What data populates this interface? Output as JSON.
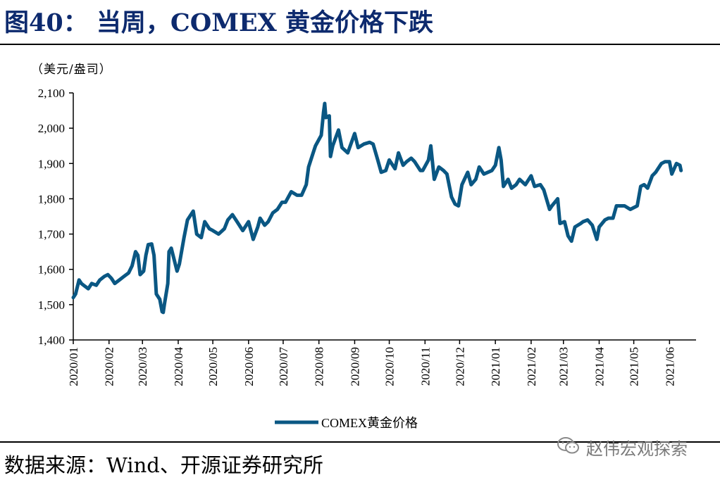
{
  "header": {
    "figure_title": "图40：  当周，COMEX 黄金价格下跌"
  },
  "footer": {
    "source": "数据来源：Wind、开源证券研究所",
    "watermark": "赵伟宏观探索"
  },
  "colors": {
    "title": "#0d2a6e",
    "series": "#0a5783",
    "axis": "#000000"
  },
  "chart_data": {
    "type": "line",
    "unit_label": "（美元/盎司）",
    "ylim": [
      1400,
      2100
    ],
    "y_ticks": [
      1400,
      1500,
      1600,
      1700,
      1800,
      1900,
      2000,
      2100
    ],
    "y_tick_labels": [
      "1,400",
      "1,500",
      "1,600",
      "1,700",
      "1,800",
      "1,900",
      "2,000",
      "2,100"
    ],
    "x_tick_labels": [
      "2020/01",
      "2020/02",
      "2020/03",
      "2020/04",
      "2020/05",
      "2020/06",
      "2020/07",
      "2020/08",
      "2020/09",
      "2020/10",
      "2020/11",
      "2020/12",
      "2021/01",
      "2021/02",
      "2021/03",
      "2021/04",
      "2021/05",
      "2021/06"
    ],
    "grid": false,
    "legend_position": "bottom-center",
    "series": [
      {
        "name": "COMEX黄金价格",
        "points": [
          [
            "2020-01-01",
            1520
          ],
          [
            "2020-01-03",
            1530
          ],
          [
            "2020-01-06",
            1570
          ],
          [
            "2020-01-08",
            1560
          ],
          [
            "2020-01-10",
            1555
          ],
          [
            "2020-01-14",
            1545
          ],
          [
            "2020-01-17",
            1560
          ],
          [
            "2020-01-21",
            1555
          ],
          [
            "2020-01-24",
            1570
          ],
          [
            "2020-01-28",
            1580
          ],
          [
            "2020-01-31",
            1585
          ],
          [
            "2020-02-03",
            1575
          ],
          [
            "2020-02-06",
            1560
          ],
          [
            "2020-02-10",
            1570
          ],
          [
            "2020-02-14",
            1580
          ],
          [
            "2020-02-18",
            1590
          ],
          [
            "2020-02-21",
            1610
          ],
          [
            "2020-02-24",
            1650
          ],
          [
            "2020-02-26",
            1640
          ],
          [
            "2020-02-28",
            1585
          ],
          [
            "2020-03-02",
            1595
          ],
          [
            "2020-03-04",
            1640
          ],
          [
            "2020-03-06",
            1670
          ],
          [
            "2020-03-09",
            1672
          ],
          [
            "2020-03-11",
            1640
          ],
          [
            "2020-03-13",
            1530
          ],
          [
            "2020-03-16",
            1515
          ],
          [
            "2020-03-18",
            1480
          ],
          [
            "2020-03-19",
            1478
          ],
          [
            "2020-03-20",
            1500
          ],
          [
            "2020-03-23",
            1560
          ],
          [
            "2020-03-24",
            1650
          ],
          [
            "2020-03-26",
            1660
          ],
          [
            "2020-03-31",
            1595
          ],
          [
            "2020-04-02",
            1615
          ],
          [
            "2020-04-06",
            1690
          ],
          [
            "2020-04-09",
            1740
          ],
          [
            "2020-04-14",
            1765
          ],
          [
            "2020-04-17",
            1700
          ],
          [
            "2020-04-21",
            1690
          ],
          [
            "2020-04-24",
            1735
          ],
          [
            "2020-04-28",
            1715
          ],
          [
            "2020-05-01",
            1710
          ],
          [
            "2020-05-06",
            1700
          ],
          [
            "2020-05-11",
            1715
          ],
          [
            "2020-05-14",
            1740
          ],
          [
            "2020-05-18",
            1755
          ],
          [
            "2020-05-20",
            1745
          ],
          [
            "2020-05-22",
            1735
          ],
          [
            "2020-05-27",
            1710
          ],
          [
            "2020-06-01",
            1735
          ],
          [
            "2020-06-05",
            1685
          ],
          [
            "2020-06-09",
            1720
          ],
          [
            "2020-06-11",
            1745
          ],
          [
            "2020-06-15",
            1725
          ],
          [
            "2020-06-18",
            1735
          ],
          [
            "2020-06-22",
            1760
          ],
          [
            "2020-06-26",
            1770
          ],
          [
            "2020-06-30",
            1790
          ],
          [
            "2020-07-03",
            1790
          ],
          [
            "2020-07-08",
            1820
          ],
          [
            "2020-07-13",
            1810
          ],
          [
            "2020-07-17",
            1810
          ],
          [
            "2020-07-21",
            1840
          ],
          [
            "2020-07-23",
            1890
          ],
          [
            "2020-07-27",
            1930
          ],
          [
            "2020-07-29",
            1950
          ],
          [
            "2020-08-03",
            1980
          ],
          [
            "2020-08-05",
            2045
          ],
          [
            "2020-08-06",
            2070
          ],
          [
            "2020-08-07",
            2030
          ],
          [
            "2020-08-10",
            2035
          ],
          [
            "2020-08-11",
            1920
          ],
          [
            "2020-08-13",
            1950
          ],
          [
            "2020-08-18",
            1995
          ],
          [
            "2020-08-21",
            1945
          ],
          [
            "2020-08-26",
            1930
          ],
          [
            "2020-09-01",
            1985
          ],
          [
            "2020-09-04",
            1945
          ],
          [
            "2020-09-09",
            1955
          ],
          [
            "2020-09-14",
            1960
          ],
          [
            "2020-09-17",
            1955
          ],
          [
            "2020-09-21",
            1910
          ],
          [
            "2020-09-24",
            1875
          ],
          [
            "2020-09-28",
            1880
          ],
          [
            "2020-10-01",
            1910
          ],
          [
            "2020-10-06",
            1885
          ],
          [
            "2020-10-09",
            1930
          ],
          [
            "2020-10-13",
            1895
          ],
          [
            "2020-10-16",
            1905
          ],
          [
            "2020-10-20",
            1915
          ],
          [
            "2020-10-23",
            1905
          ],
          [
            "2020-10-28",
            1880
          ],
          [
            "2020-10-30",
            1880
          ],
          [
            "2020-11-04",
            1910
          ],
          [
            "2020-11-06",
            1950
          ],
          [
            "2020-11-09",
            1855
          ],
          [
            "2020-11-13",
            1890
          ],
          [
            "2020-11-17",
            1880
          ],
          [
            "2020-11-20",
            1870
          ],
          [
            "2020-11-24",
            1805
          ],
          [
            "2020-11-27",
            1785
          ],
          [
            "2020-11-30",
            1780
          ],
          [
            "2020-12-03",
            1840
          ],
          [
            "2020-12-08",
            1875
          ],
          [
            "2020-12-11",
            1840
          ],
          [
            "2020-12-15",
            1855
          ],
          [
            "2020-12-18",
            1890
          ],
          [
            "2020-12-22",
            1870
          ],
          [
            "2020-12-29",
            1880
          ],
          [
            "2021-01-01",
            1895
          ],
          [
            "2021-01-04",
            1945
          ],
          [
            "2021-01-06",
            1910
          ],
          [
            "2021-01-08",
            1835
          ],
          [
            "2021-01-12",
            1855
          ],
          [
            "2021-01-15",
            1830
          ],
          [
            "2021-01-19",
            1840
          ],
          [
            "2021-01-22",
            1855
          ],
          [
            "2021-01-27",
            1840
          ],
          [
            "2021-02-01",
            1865
          ],
          [
            "2021-02-04",
            1835
          ],
          [
            "2021-02-09",
            1840
          ],
          [
            "2021-02-12",
            1825
          ],
          [
            "2021-02-17",
            1770
          ],
          [
            "2021-02-19",
            1780
          ],
          [
            "2021-02-24",
            1800
          ],
          [
            "2021-02-26",
            1730
          ],
          [
            "2021-03-02",
            1735
          ],
          [
            "2021-03-05",
            1695
          ],
          [
            "2021-03-08",
            1680
          ],
          [
            "2021-03-11",
            1720
          ],
          [
            "2021-03-16",
            1730
          ],
          [
            "2021-03-18",
            1735
          ],
          [
            "2021-03-22",
            1740
          ],
          [
            "2021-03-26",
            1725
          ],
          [
            "2021-03-30",
            1685
          ],
          [
            "2021-04-01",
            1720
          ],
          [
            "2021-04-06",
            1740
          ],
          [
            "2021-04-09",
            1745
          ],
          [
            "2021-04-13",
            1745
          ],
          [
            "2021-04-16",
            1780
          ],
          [
            "2021-04-20",
            1780
          ],
          [
            "2021-04-23",
            1780
          ],
          [
            "2021-04-28",
            1770
          ],
          [
            "2021-05-04",
            1780
          ],
          [
            "2021-05-07",
            1835
          ],
          [
            "2021-05-10",
            1840
          ],
          [
            "2021-05-13",
            1830
          ],
          [
            "2021-05-17",
            1865
          ],
          [
            "2021-05-20",
            1875
          ],
          [
            "2021-05-25",
            1900
          ],
          [
            "2021-05-28",
            1905
          ],
          [
            "2021-06-01",
            1905
          ],
          [
            "2021-06-03",
            1870
          ],
          [
            "2021-06-07",
            1900
          ],
          [
            "2021-06-10",
            1895
          ],
          [
            "2021-06-11",
            1880
          ]
        ]
      }
    ]
  }
}
